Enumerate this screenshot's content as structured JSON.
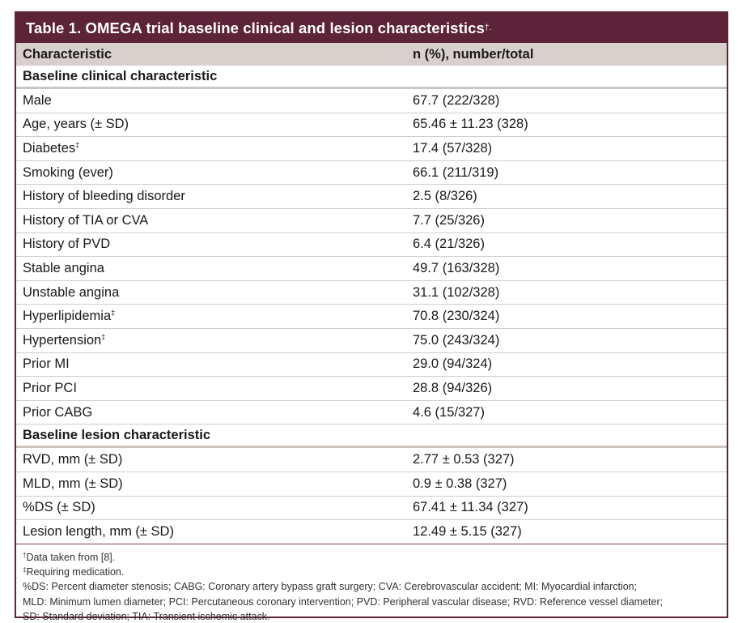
{
  "title": {
    "text": "Table 1. OMEGA trial baseline clinical and lesion characteristics",
    "mark": "†."
  },
  "header": {
    "col1": "Characteristic",
    "col2": "n (%), number/total"
  },
  "sections": [
    {
      "label": "Baseline clinical characteristic",
      "rows": [
        {
          "label": "Male",
          "mark": "",
          "value": "67.7 (222/328)"
        },
        {
          "label": "Age, years (± SD)",
          "mark": "",
          "value": "65.46 ± 11.23 (328)"
        },
        {
          "label": "Diabetes",
          "mark": "‡",
          "value": "17.4 (57/328)"
        },
        {
          "label": "Smoking (ever)",
          "mark": "",
          "value": "66.1 (211/319)"
        },
        {
          "label": "History of bleeding disorder",
          "mark": "",
          "value": "2.5 (8/326)"
        },
        {
          "label": "History of TIA or CVA",
          "mark": "",
          "value": "7.7 (25/326)"
        },
        {
          "label": "History of PVD",
          "mark": "",
          "value": "6.4 (21/326)"
        },
        {
          "label": "Stable angina",
          "mark": "",
          "value": "49.7 (163/328)"
        },
        {
          "label": "Unstable angina",
          "mark": "",
          "value": "31.1 (102/328)"
        },
        {
          "label": "Hyperlipidemia",
          "mark": "‡",
          "value": "70.8 (230/324)"
        },
        {
          "label": "Hypertension",
          "mark": "‡",
          "value": "75.0 (243/324)"
        },
        {
          "label": "Prior MI",
          "mark": "",
          "value": "29.0 (94/324)"
        },
        {
          "label": "Prior PCI",
          "mark": "",
          "value": "28.8 (94/326)"
        },
        {
          "label": "Prior CABG",
          "mark": "",
          "value": "4.6 (15/327)"
        }
      ]
    },
    {
      "label": "Baseline lesion characteristic",
      "rows": [
        {
          "label": "RVD, mm (± SD)",
          "mark": "",
          "value": "2.77 ± 0.53 (327)"
        },
        {
          "label": "MLD, mm (± SD)",
          "mark": "",
          "value": "0.9 ± 0.38 (327)"
        },
        {
          "label": "%DS (± SD)",
          "mark": "",
          "value": "67.41 ± 11.34 (327)"
        },
        {
          "label": "Lesion length, mm (± SD)",
          "mark": "",
          "value": "12.49 ± 5.15 (327)"
        }
      ]
    }
  ],
  "footnotes": [
    {
      "mark": "†",
      "text": "Data taken from [8]."
    },
    {
      "mark": "‡",
      "text": "Requiring medication."
    },
    {
      "mark": "",
      "text": "%DS: Percent diameter stenosis; CABG: Coronary artery bypass graft surgery; CVA: Cerebrovascular accident; MI: Myocardial infarction;"
    },
    {
      "mark": "",
      "text": "MLD: Minimum lumen diameter; PCI: Percutaneous coronary intervention; PVD: Peripheral vascular disease; RVD: Reference vessel diameter;"
    },
    {
      "mark": "",
      "text": "SD: Standard deviation; TIA: Transient ischemic attack."
    }
  ]
}
